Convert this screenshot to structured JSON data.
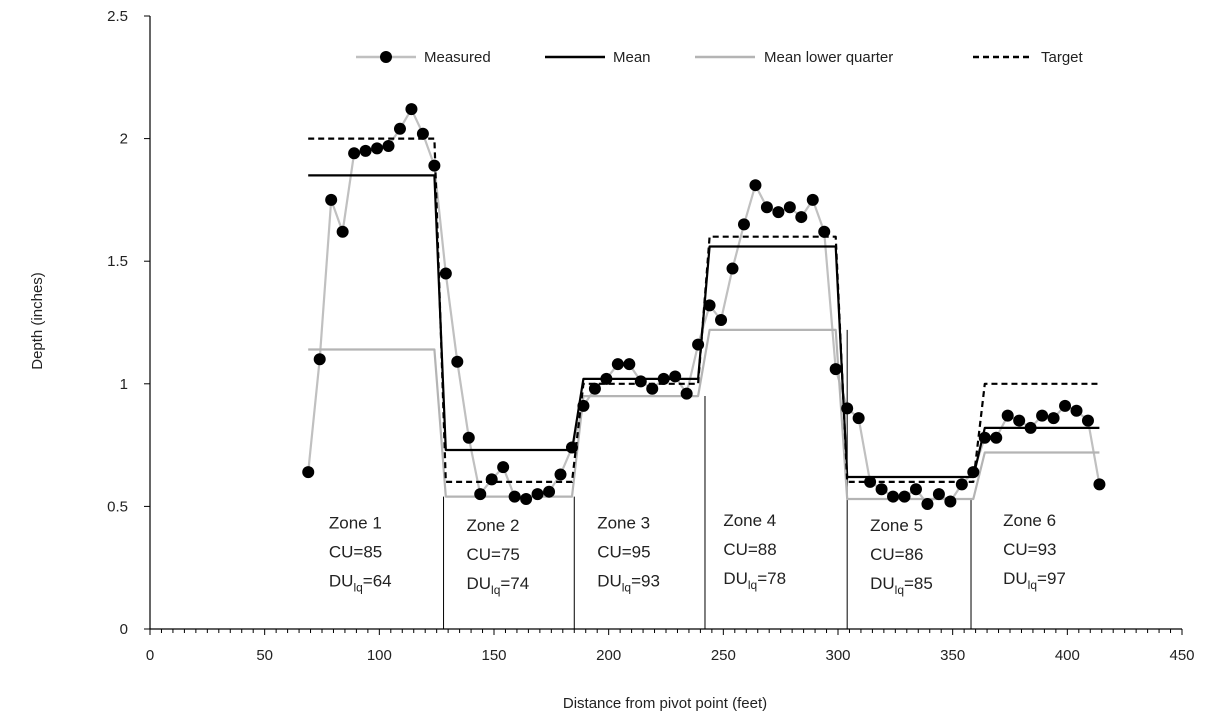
{
  "chart_data": {
    "type": "line",
    "title": "",
    "xlabel": "Distance from pivot point (feet)",
    "ylabel": "Depth (inches)",
    "xlim": [
      0,
      450
    ],
    "ylim": [
      0,
      2.5
    ],
    "x_ticks": [
      0,
      50,
      100,
      150,
      200,
      250,
      300,
      350,
      400,
      450
    ],
    "y_ticks": [
      0,
      0.5,
      1,
      1.5,
      2,
      2.5
    ],
    "x_tick_labels": [
      "0",
      "50",
      "100",
      "150",
      "200",
      "250",
      "300",
      "350",
      "400",
      "450"
    ],
    "y_tick_labels": [
      "0",
      "0.5",
      "1",
      "1.5",
      "2",
      "2.5"
    ],
    "grid": false,
    "legend_position": "top",
    "series": [
      {
        "name": "Measured",
        "style": "markers-and-line",
        "color": "#000000",
        "line_color": "#c0c0c0",
        "points": [
          [
            69,
            0.64
          ],
          [
            74,
            1.1
          ],
          [
            79,
            1.75
          ],
          [
            84,
            1.62
          ],
          [
            89,
            1.94
          ],
          [
            94,
            1.95
          ],
          [
            99,
            1.96
          ],
          [
            104,
            1.97
          ],
          [
            109,
            2.04
          ],
          [
            114,
            2.12
          ],
          [
            119,
            2.02
          ],
          [
            124,
            1.89
          ],
          [
            129,
            1.45
          ],
          [
            134,
            1.09
          ],
          [
            139,
            0.78
          ],
          [
            144,
            0.55
          ],
          [
            149,
            0.61
          ],
          [
            154,
            0.66
          ],
          [
            159,
            0.54
          ],
          [
            164,
            0.53
          ],
          [
            169,
            0.55
          ],
          [
            174,
            0.56
          ],
          [
            179,
            0.63
          ],
          [
            184,
            0.74
          ],
          [
            189,
            0.91
          ],
          [
            194,
            0.98
          ],
          [
            199,
            1.02
          ],
          [
            204,
            1.08
          ],
          [
            209,
            1.08
          ],
          [
            214,
            1.01
          ],
          [
            219,
            0.98
          ],
          [
            224,
            1.02
          ],
          [
            229,
            1.03
          ],
          [
            234,
            0.96
          ],
          [
            239,
            1.16
          ],
          [
            244,
            1.32
          ],
          [
            249,
            1.26
          ],
          [
            254,
            1.47
          ],
          [
            259,
            1.65
          ],
          [
            264,
            1.81
          ],
          [
            269,
            1.72
          ],
          [
            274,
            1.7
          ],
          [
            279,
            1.72
          ],
          [
            284,
            1.68
          ],
          [
            289,
            1.75
          ],
          [
            294,
            1.62
          ],
          [
            299,
            1.06
          ],
          [
            304,
            0.9
          ],
          [
            309,
            0.86
          ],
          [
            314,
            0.6
          ],
          [
            319,
            0.57
          ],
          [
            324,
            0.54
          ],
          [
            329,
            0.54
          ],
          [
            334,
            0.57
          ],
          [
            339,
            0.51
          ],
          [
            344,
            0.55
          ],
          [
            349,
            0.52
          ],
          [
            354,
            0.59
          ],
          [
            359,
            0.64
          ],
          [
            364,
            0.78
          ],
          [
            369,
            0.78
          ],
          [
            374,
            0.87
          ],
          [
            379,
            0.85
          ],
          [
            384,
            0.82
          ],
          [
            389,
            0.87
          ],
          [
            394,
            0.86
          ],
          [
            399,
            0.91
          ],
          [
            404,
            0.89
          ],
          [
            409,
            0.85
          ],
          [
            414,
            0.59
          ]
        ]
      },
      {
        "name": "Mean",
        "style": "solid",
        "color": "#000000",
        "points": [
          [
            69,
            1.85
          ],
          [
            124,
            1.85
          ],
          [
            129,
            0.73
          ],
          [
            184,
            0.73
          ],
          [
            189,
            1.02
          ],
          [
            239,
            1.02
          ],
          [
            244,
            1.56
          ],
          [
            299,
            1.56
          ],
          [
            304,
            0.62
          ],
          [
            359,
            0.62
          ],
          [
            364,
            0.82
          ],
          [
            414,
            0.82
          ]
        ]
      },
      {
        "name": "Mean lower quarter",
        "style": "solid",
        "color": "#b4b4b4",
        "points": [
          [
            69,
            1.14
          ],
          [
            124,
            1.14
          ],
          [
            129,
            0.54
          ],
          [
            184,
            0.54
          ],
          [
            189,
            0.95
          ],
          [
            239,
            0.95
          ],
          [
            244,
            1.22
          ],
          [
            299,
            1.22
          ],
          [
            304,
            0.53
          ],
          [
            359,
            0.53
          ],
          [
            364,
            0.72
          ],
          [
            414,
            0.72
          ]
        ]
      },
      {
        "name": "Target",
        "style": "dashed",
        "color": "#000000",
        "points": [
          [
            69,
            2.0
          ],
          [
            124,
            2.0
          ],
          [
            129,
            0.6
          ],
          [
            184,
            0.6
          ],
          [
            189,
            1.0
          ],
          [
            239,
            1.0
          ],
          [
            244,
            1.6
          ],
          [
            299,
            1.6
          ],
          [
            304,
            0.6
          ],
          [
            359,
            0.6
          ],
          [
            364,
            1.0
          ],
          [
            414,
            1.0
          ]
        ]
      }
    ],
    "zone_dividers": [
      [
        128,
        0.54
      ],
      [
        185,
        0.54
      ],
      [
        242,
        0.95
      ],
      [
        304,
        1.22
      ],
      [
        358,
        0.53
      ]
    ],
    "zones": [
      {
        "name": "Zone 1",
        "cu": "CU=85",
        "du_prefix": "DU",
        "du_sub": "lq",
        "du_value": "=64",
        "x": 78,
        "y": 0.41
      },
      {
        "name": "Zone 2",
        "cu": "CU=75",
        "du_prefix": "DU",
        "du_sub": "lq",
        "du_value": "=74",
        "x": 138,
        "y": 0.4
      },
      {
        "name": "Zone 3",
        "cu": "CU=95",
        "du_prefix": "DU",
        "du_sub": "lq",
        "du_value": "=93",
        "x": 195,
        "y": 0.41
      },
      {
        "name": "Zone 4",
        "cu": "CU=88",
        "du_prefix": "DU",
        "du_sub": "lq",
        "du_value": "=78",
        "x": 250,
        "y": 0.42
      },
      {
        "name": "Zone 5",
        "cu": "CU=86",
        "du_prefix": "DU",
        "du_sub": "lq",
        "du_value": "=85",
        "x": 314,
        "y": 0.4
      },
      {
        "name": "Zone 6",
        "cu": "CU=93",
        "du_prefix": "DU",
        "du_sub": "lq",
        "du_value": "=97",
        "x": 372,
        "y": 0.42
      }
    ]
  }
}
